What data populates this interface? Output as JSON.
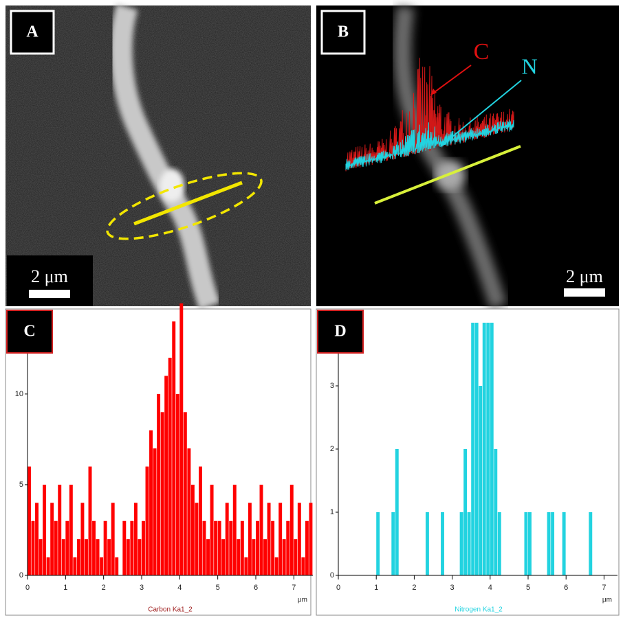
{
  "panels": [
    {
      "label": "A",
      "scale_bar": "2 μm"
    },
    {
      "label": "B",
      "scale_bar": "2 μm",
      "annotations": [
        "C",
        "N"
      ]
    }
  ],
  "chart_data": [
    {
      "type": "histogram",
      "label": "C",
      "x_label": "μm",
      "bins": [
        0,
        0.1,
        0.2,
        0.3,
        0.4,
        0.5,
        0.6,
        0.7,
        0.8,
        0.9,
        1,
        1.1,
        1.2,
        1.3,
        1.4,
        1.5,
        1.6,
        1.7,
        1.8,
        1.9,
        2,
        2.1,
        2.2,
        2.3,
        2.4,
        2.5,
        2.6,
        2.7,
        2.8,
        2.9,
        3,
        3.1,
        3.2,
        3.3,
        3.4,
        3.5,
        3.6,
        3.7,
        3.8,
        3.9,
        4,
        4.1,
        4.2,
        4.3,
        4.4,
        4.5,
        4.6,
        4.7,
        4.8,
        4.9,
        5,
        5.1,
        5.2,
        5.3,
        5.4,
        5.5,
        5.6,
        5.7,
        5.8,
        5.9,
        6,
        6.1,
        6.2,
        6.3,
        6.4,
        6.5,
        6.6,
        6.7,
        6.8,
        6.9,
        7,
        7.1,
        7.2,
        7.3,
        7.4,
        7.5
      ],
      "series": [
        {
          "name": "Carbon Ka1_2",
          "color": "#ff0000",
          "values": [
            6,
            3,
            4,
            2,
            5,
            1,
            4,
            3,
            5,
            2,
            3,
            5,
            1,
            2,
            4,
            2,
            6,
            3,
            2,
            1,
            3,
            2,
            4,
            1,
            0,
            3,
            2,
            3,
            4,
            2,
            3,
            6,
            8,
            7,
            10,
            9,
            11,
            12,
            14,
            10,
            15,
            9,
            7,
            5,
            4,
            6,
            3,
            2,
            5,
            3,
            3,
            2,
            4,
            3,
            5,
            2,
            3,
            1,
            4,
            2,
            3,
            5,
            2,
            4,
            3,
            1,
            4,
            2,
            3,
            5,
            2,
            4,
            1,
            3,
            4
          ]
        }
      ],
      "xlim": [
        0,
        7.5
      ],
      "xticks": [
        0,
        1,
        2,
        3,
        4,
        5,
        6,
        7
      ],
      "ylim": [
        0,
        14.5
      ],
      "yticks": [
        0,
        5,
        10
      ]
    },
    {
      "type": "histogram",
      "label": "D",
      "x_label": "μm",
      "bins": [
        0,
        0.1,
        0.2,
        0.3,
        0.4,
        0.5,
        0.6,
        0.7,
        0.8,
        0.9,
        1,
        1.1,
        1.2,
        1.3,
        1.4,
        1.5,
        1.6,
        1.7,
        1.8,
        1.9,
        2,
        2.1,
        2.2,
        2.3,
        2.4,
        2.5,
        2.6,
        2.7,
        2.8,
        2.9,
        3,
        3.1,
        3.2,
        3.3,
        3.4,
        3.5,
        3.6,
        3.7,
        3.8,
        3.9,
        4,
        4.1,
        4.2,
        4.3,
        4.4,
        4.5,
        4.6,
        4.7,
        4.8,
        4.9,
        5,
        5.1,
        5.2,
        5.3,
        5.4,
        5.5,
        5.6,
        5.7,
        5.8,
        5.9,
        6,
        6.1,
        6.2,
        6.3,
        6.4,
        6.5,
        6.6,
        6.7,
        6.8,
        6.9,
        7,
        7.1,
        7.2,
        7.3,
        7.4,
        7.5
      ],
      "series": [
        {
          "name": "Nitrogen Ka1_2",
          "color": "#22d3e0",
          "values": [
            0,
            0,
            0,
            0,
            0,
            0,
            0,
            0,
            0,
            0,
            1,
            0,
            0,
            0,
            1,
            2,
            0,
            0,
            0,
            0,
            0,
            0,
            0,
            1,
            0,
            0,
            0,
            1,
            0,
            0,
            0,
            0,
            1,
            2,
            1,
            4,
            4,
            3,
            4,
            4,
            4,
            2,
            1,
            0,
            0,
            0,
            0,
            0,
            0,
            1,
            1,
            0,
            0,
            0,
            0,
            1,
            1,
            0,
            0,
            1,
            0,
            0,
            0,
            0,
            0,
            0,
            1,
            0,
            0,
            0,
            0,
            0,
            0,
            0,
            0
          ]
        }
      ],
      "xlim": [
        0,
        7.5
      ],
      "xticks": [
        0,
        1,
        2,
        3,
        4,
        5,
        6,
        7
      ],
      "ylim": [
        0,
        4
      ],
      "yticks": [
        0,
        1,
        2,
        3
      ]
    }
  ]
}
